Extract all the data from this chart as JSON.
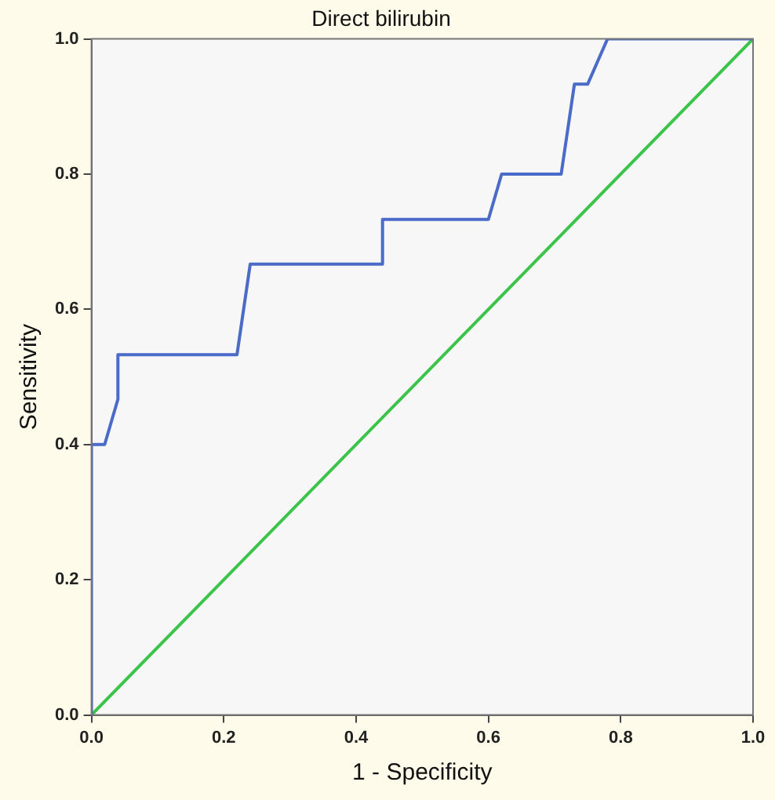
{
  "chart_data": {
    "type": "line",
    "title": "Direct bilirubin",
    "xlabel": "1 - Specificity",
    "ylabel": "Sensitivity",
    "xlim": [
      0,
      1
    ],
    "ylim": [
      0,
      1
    ],
    "xticks": [
      {
        "value": 0,
        "label": "0.0"
      },
      {
        "value": 0.2,
        "label": "0.2"
      },
      {
        "value": 0.4,
        "label": "0.4"
      },
      {
        "value": 0.6,
        "label": "0.6"
      },
      {
        "value": 0.8,
        "label": "0.8"
      },
      {
        "value": 1,
        "label": "1.0"
      }
    ],
    "yticks": [
      {
        "value": 0,
        "label": "0.0"
      },
      {
        "value": 0.2,
        "label": "0.2"
      },
      {
        "value": 0.4,
        "label": "0.4"
      },
      {
        "value": 0.6,
        "label": "0.6"
      },
      {
        "value": 0.8,
        "label": "0.8"
      },
      {
        "value": 1,
        "label": "1.0"
      }
    ],
    "series": [
      {
        "color": "#4a6bc8",
        "x": [
          0,
          0,
          0.02,
          0.04,
          0.04,
          0.22,
          0.24,
          0.44,
          0.44,
          0.6,
          0.62,
          0.71,
          0.73,
          0.75,
          0.78,
          1
        ],
        "values": [
          0,
          0.4,
          0.4,
          0.467,
          0.533,
          0.533,
          0.667,
          0.667,
          0.733,
          0.733,
          0.8,
          0.8,
          0.933,
          0.933,
          1,
          1
        ]
      },
      {
        "color": "#3cc44a",
        "x": [
          0,
          1
        ],
        "values": [
          0,
          1
        ]
      }
    ],
    "grid": false,
    "legend": false,
    "marker": "none",
    "line_style": "solid"
  }
}
